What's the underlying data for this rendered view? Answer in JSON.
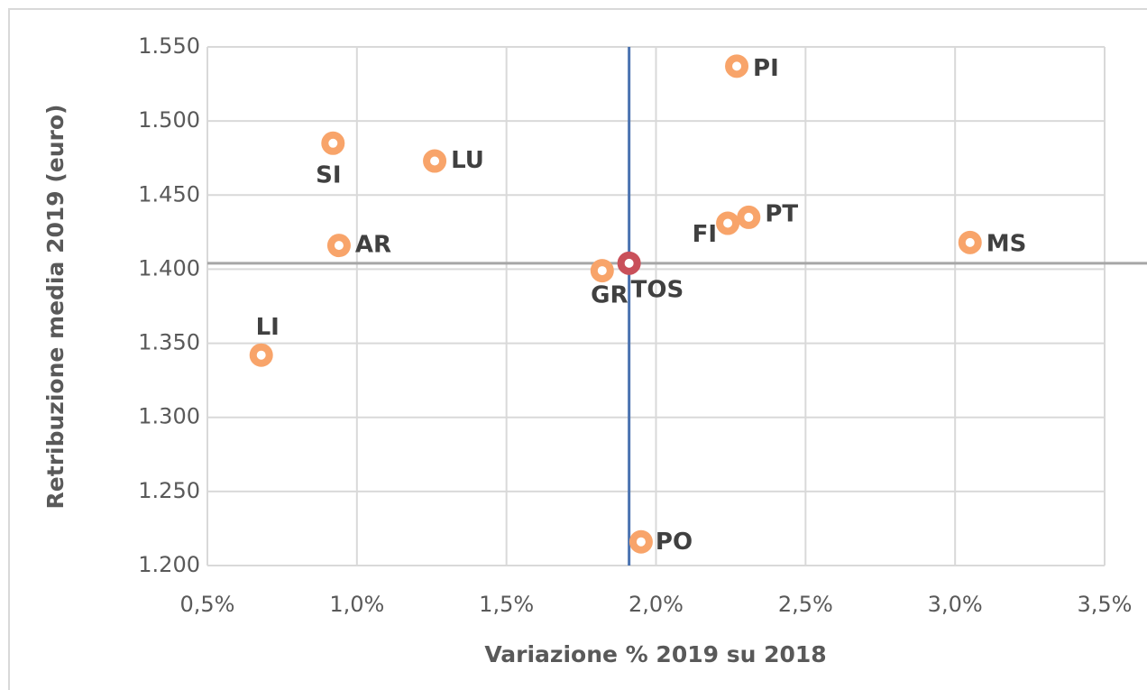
{
  "chart_data": {
    "type": "scatter",
    "x_label": "Variazione % 2019 su 2018",
    "y_label": "Retribuzione media  2019 (euro)",
    "labels": [
      "PI",
      "SI",
      "LU",
      "FI",
      "PT",
      "MS",
      "AR",
      "GR",
      "TOS",
      "LI",
      "PO"
    ],
    "x": [
      2.27,
      0.92,
      1.26,
      2.24,
      2.31,
      3.05,
      0.94,
      1.82,
      1.91,
      0.68,
      1.95
    ],
    "y": [
      1537,
      1485,
      1473,
      1431,
      1435,
      1418,
      1416,
      1399,
      1404,
      1342,
      1216
    ],
    "colors": [
      "#f8a46a",
      "#f8a46a",
      "#f8a46a",
      "#f8a46a",
      "#f8a46a",
      "#f8a46a",
      "#f8a46a",
      "#f8a46a",
      "#c9505a",
      "#f8a46a",
      "#f8a46a"
    ],
    "xlim": [
      0.5,
      3.5
    ],
    "xticks": [
      {
        "value": 0.5,
        "label": "0,5%"
      },
      {
        "value": 1.0,
        "label": "1,0%"
      },
      {
        "value": 1.5,
        "label": "1,5%"
      },
      {
        "value": 2.0,
        "label": "2,0%"
      },
      {
        "value": 2.5,
        "label": "2,5%"
      },
      {
        "value": 3.0,
        "label": "3,0%"
      },
      {
        "value": 3.5,
        "label": "3,5%"
      }
    ],
    "ylim": [
      1200,
      1550
    ],
    "yticks": [
      {
        "value": 1200,
        "label": "1.200"
      },
      {
        "value": 1250,
        "label": "1.250"
      },
      {
        "value": 1300,
        "label": "1.300"
      },
      {
        "value": 1350,
        "label": "1.350"
      },
      {
        "value": 1400,
        "label": "1.400"
      },
      {
        "value": 1450,
        "label": "1.450"
      },
      {
        "value": 1500,
        "label": "1.500"
      },
      {
        "value": 1550,
        "label": "1.550"
      }
    ],
    "grid": true,
    "vline_color": "#4a72b0",
    "hline_color": "#a6a6a6"
  }
}
